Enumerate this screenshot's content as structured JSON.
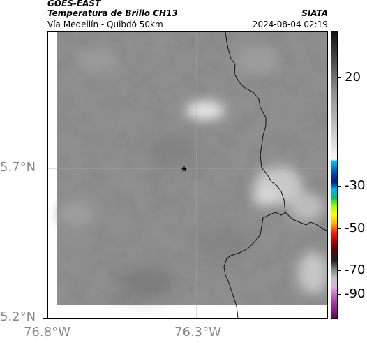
{
  "header": {
    "satellite": "GOES-EAST",
    "product": "Temperatura de Brillo CH13",
    "region": "Vía Medellín - Quibdó 50km",
    "organization": "SIATA",
    "timestamp": "2024-08-04 02:19"
  },
  "axes": {
    "lat_ticks": [
      "5.7°N",
      "5.2°N"
    ],
    "lon_ticks": [
      "76.8°W",
      "76.3°W"
    ]
  },
  "colorbar": {
    "ticks": [
      "20",
      "-30",
      "-50",
      "-70",
      "-90"
    ]
  },
  "map": {
    "marker_icon": "star-icon",
    "background_color": "#8f8f8f",
    "border_color": "#000000",
    "gridline_color": "#b0b0b0"
  }
}
